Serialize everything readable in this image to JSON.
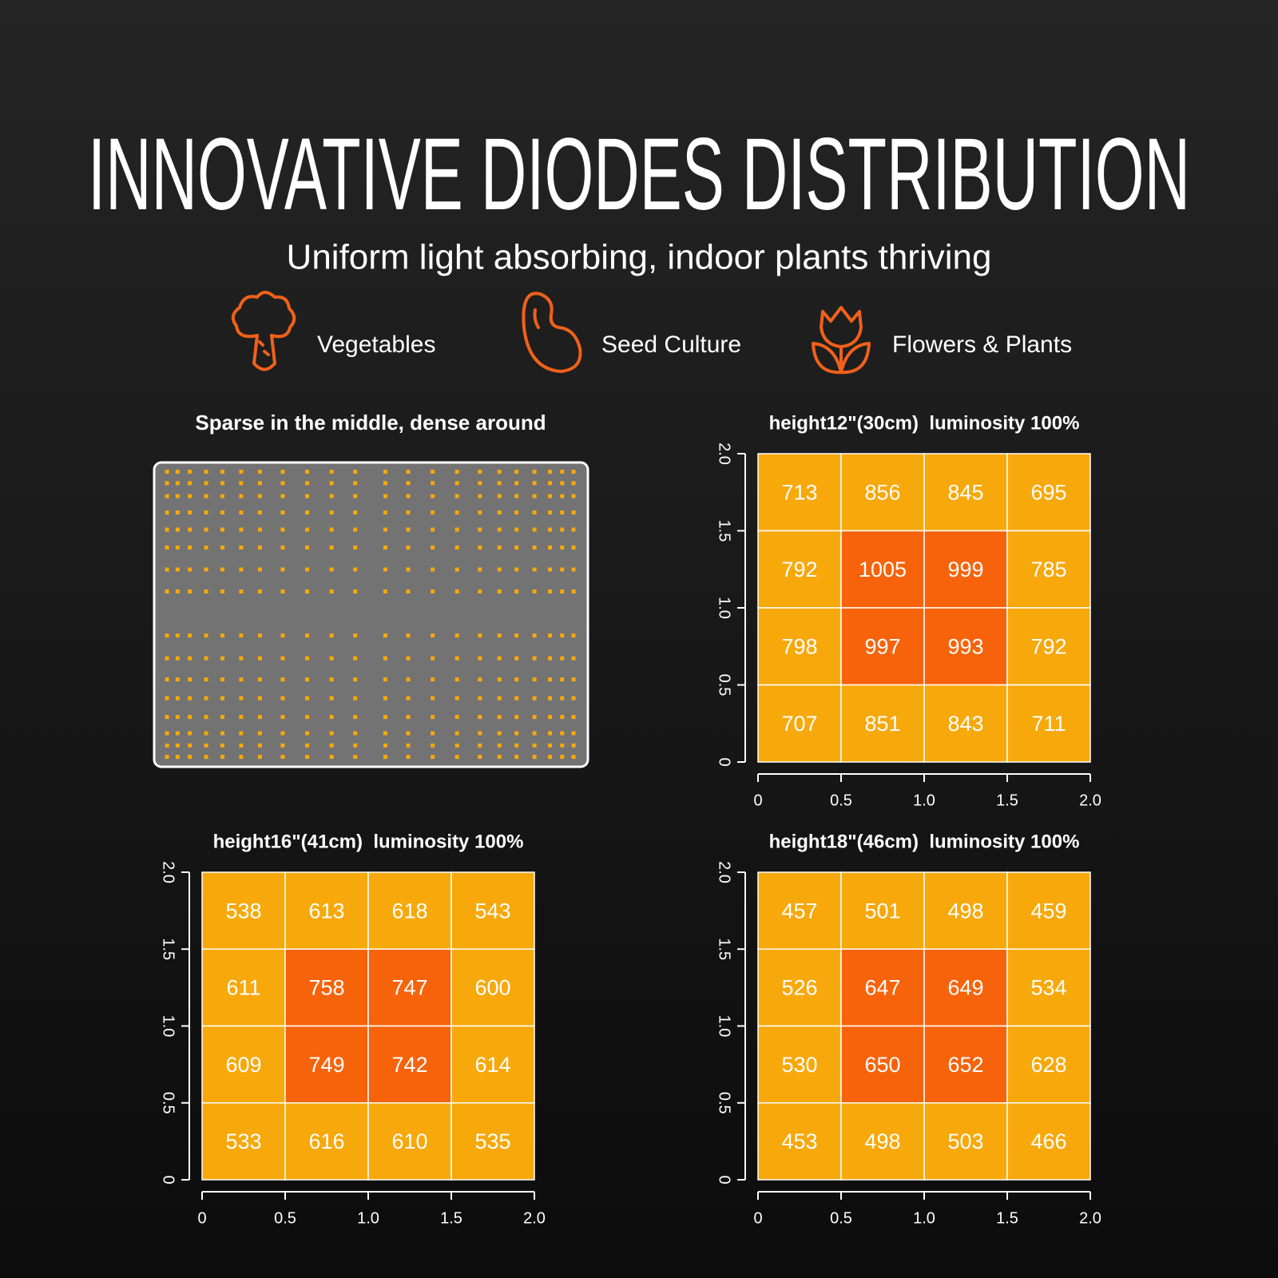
{
  "header": {
    "title": "INNOVATIVE DIODES DISTRIBUTION",
    "subtitle": "Uniform light absorbing, indoor plants thriving"
  },
  "uses": [
    "Vegetables",
    "Seed Culture",
    "Flowers & Plants"
  ],
  "diode_panel": {
    "title": "Sparse in the middle, dense around"
  },
  "chart_data": [
    {
      "type": "heatmap",
      "title": "height12\"(30cm)  luminosity 100%",
      "xlim": [
        0,
        2
      ],
      "ylim": [
        0,
        2
      ],
      "xticks": [
        0,
        0.5,
        {
          "value": 1,
          "label": "1.0"
        },
        1.5,
        {
          "value": 2,
          "label": "2.0"
        }
      ],
      "yticks": [
        0,
        0.5,
        {
          "value": 1,
          "label": "1.0"
        },
        1.5,
        {
          "value": 2,
          "label": "2.0"
        }
      ],
      "values": [
        [
          713,
          856,
          845,
          695
        ],
        [
          792,
          1005,
          999,
          785
        ],
        [
          798,
          997,
          993,
          792
        ],
        [
          707,
          851,
          843,
          711
        ]
      ],
      "color": "#f7a80b",
      "highlight_color": "#f7630b"
    },
    {
      "type": "heatmap",
      "title": "height16\"(41cm)  luminosity 100%",
      "xlim": [
        0,
        2
      ],
      "ylim": [
        0,
        2
      ],
      "xticks": [
        0,
        0.5,
        {
          "value": 1,
          "label": "1.0"
        },
        1.5,
        {
          "value": 2,
          "label": "2.0"
        }
      ],
      "yticks": [
        0,
        0.5,
        {
          "value": 1,
          "label": "1.0"
        },
        1.5,
        {
          "value": 2,
          "label": "2.0"
        }
      ],
      "values": [
        [
          538,
          613,
          618,
          543
        ],
        [
          611,
          758,
          747,
          600
        ],
        [
          609,
          749,
          742,
          614
        ],
        [
          533,
          616,
          610,
          535
        ]
      ],
      "color": "#f7a80b",
      "highlight_color": "#f7630b"
    },
    {
      "type": "heatmap",
      "title": "height18\"(46cm)  luminosity 100%",
      "xlim": [
        0,
        2
      ],
      "ylim": [
        0,
        2
      ],
      "xticks": [
        0,
        0.5,
        {
          "value": 1,
          "label": "1.0"
        },
        1.5,
        {
          "value": 2,
          "label": "2.0"
        }
      ],
      "yticks": [
        0,
        0.5,
        {
          "value": 1,
          "label": "1.0"
        },
        1.5,
        {
          "value": 2,
          "label": "2.0"
        }
      ],
      "values": [
        [
          457,
          501,
          498,
          459
        ],
        [
          526,
          647,
          649,
          534
        ],
        [
          530,
          650,
          652,
          628
        ],
        [
          453,
          498,
          503,
          466
        ]
      ],
      "color": "#f7a80b",
      "highlight_color": "#f7630b"
    }
  ]
}
